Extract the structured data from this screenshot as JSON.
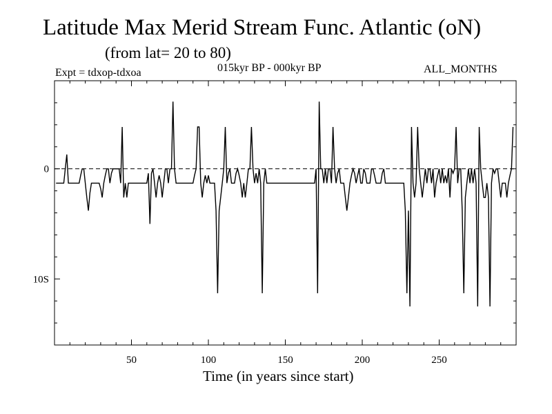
{
  "header": {
    "title": "Latitude Max Merid Stream Func. Atlantic (oN)",
    "subtitle": "(from lat= 20 to 80)",
    "experiment": "Expt = tdxop-tdxoa",
    "period": "015kyr BP - 000kyr BP",
    "months": "ALL_MONTHS"
  },
  "chart_data": {
    "type": "line",
    "title": "Latitude Max Merid Stream Func. Atlantic (oN)",
    "subtitle": "(from lat= 20 to 80)",
    "xlabel": "Time (in years since start)",
    "ylabel": "",
    "xlim": [
      0,
      300
    ],
    "ylim": [
      -16,
      8
    ],
    "x_ticks": [
      50,
      100,
      150,
      200,
      250
    ],
    "y_ticks": [
      {
        "value": 0,
        "label": "0"
      },
      {
        "value": -10,
        "label": "10S"
      }
    ],
    "reference_line": {
      "value": 0,
      "style": "dashed"
    },
    "grid": false,
    "series": [
      {
        "name": "",
        "points": [
          [
            1,
            -1.3
          ],
          [
            6,
            -1.3
          ],
          [
            7,
            0
          ],
          [
            8,
            1.3
          ],
          [
            9,
            -1.3
          ],
          [
            16,
            -1.3
          ],
          [
            17,
            -0.6
          ],
          [
            18,
            0
          ],
          [
            19,
            0
          ],
          [
            20,
            -1.3
          ],
          [
            21,
            -2.6
          ],
          [
            22,
            -3.8
          ],
          [
            23,
            -2.2
          ],
          [
            24,
            -1.3
          ],
          [
            29,
            -1.3
          ],
          [
            30,
            -1.8
          ],
          [
            31,
            -2.6
          ],
          [
            32,
            -1.3
          ],
          [
            33,
            -0.6
          ],
          [
            34,
            0
          ],
          [
            35,
            0
          ],
          [
            36,
            -1.3
          ],
          [
            37,
            -0.4
          ],
          [
            38,
            0
          ],
          [
            42,
            0
          ],
          [
            43,
            -1.3
          ],
          [
            44,
            3.8
          ],
          [
            45,
            -2.6
          ],
          [
            46,
            -1.3
          ],
          [
            47,
            -2.6
          ],
          [
            48,
            -1.3
          ],
          [
            60,
            -1.3
          ],
          [
            61,
            -0.4
          ],
          [
            62,
            -5
          ],
          [
            63,
            -0.4
          ],
          [
            64,
            0
          ],
          [
            65,
            -1.3
          ],
          [
            66,
            -2.6
          ],
          [
            67,
            -1.3
          ],
          [
            68,
            -0.6
          ],
          [
            69,
            -1.3
          ],
          [
            70,
            -2.6
          ],
          [
            71,
            -1.3
          ],
          [
            72,
            0
          ],
          [
            73,
            0
          ],
          [
            74,
            -1.3
          ],
          [
            75,
            0
          ],
          [
            76,
            0
          ],
          [
            77,
            6.1
          ],
          [
            78,
            0
          ],
          [
            79,
            -1.3
          ],
          [
            90,
            -1.3
          ],
          [
            91,
            -0.6
          ],
          [
            92,
            0
          ],
          [
            93,
            3.8
          ],
          [
            94,
            3.8
          ],
          [
            95,
            -1.3
          ],
          [
            96,
            -2.6
          ],
          [
            97,
            -1.3
          ],
          [
            98,
            -0.6
          ],
          [
            99,
            -1.3
          ],
          [
            100,
            -0.6
          ],
          [
            101,
            -1.3
          ],
          [
            102,
            -1.3
          ],
          [
            103,
            -1.3
          ],
          [
            104,
            -1.3
          ],
          [
            105,
            -3.8
          ],
          [
            106,
            -11.3
          ],
          [
            107,
            -3.8
          ],
          [
            108,
            -2.6
          ],
          [
            109,
            -1.3
          ],
          [
            110,
            0
          ],
          [
            111,
            3.8
          ],
          [
            112,
            -1.3
          ],
          [
            113,
            -0.4
          ],
          [
            114,
            0
          ],
          [
            115,
            -1.3
          ],
          [
            116,
            -1.3
          ],
          [
            117,
            -1.3
          ],
          [
            118,
            -0.4
          ],
          [
            119,
            0
          ],
          [
            120,
            -0.6
          ],
          [
            121,
            -1.3
          ],
          [
            122,
            -2.6
          ],
          [
            123,
            -1.3
          ],
          [
            124,
            -2.6
          ],
          [
            125,
            -1.3
          ],
          [
            126,
            0
          ],
          [
            127,
            0
          ],
          [
            128,
            3.8
          ],
          [
            129,
            0
          ],
          [
            130,
            -1.3
          ],
          [
            131,
            -0.4
          ],
          [
            132,
            -1.3
          ],
          [
            133,
            0
          ],
          [
            134,
            -1.3
          ],
          [
            135,
            -11.3
          ],
          [
            136,
            -1.3
          ],
          [
            137,
            0
          ],
          [
            138,
            -1.3
          ],
          [
            139,
            -1.3
          ],
          [
            169,
            -1.3
          ],
          [
            170,
            0
          ],
          [
            171,
            -11.3
          ],
          [
            172,
            6.1
          ],
          [
            173,
            0
          ],
          [
            174,
            0
          ],
          [
            175,
            -1.3
          ],
          [
            176,
            0
          ],
          [
            177,
            -1.3
          ],
          [
            178,
            0
          ],
          [
            179,
            0
          ],
          [
            180,
            -1.3
          ],
          [
            181,
            3.8
          ],
          [
            182,
            0
          ],
          [
            183,
            -1.3
          ],
          [
            184,
            -0.4
          ],
          [
            185,
            0
          ],
          [
            186,
            -1.3
          ],
          [
            187,
            -1.3
          ],
          [
            188,
            -1.3
          ],
          [
            189,
            -2.6
          ],
          [
            190,
            -3.8
          ],
          [
            191,
            -2.6
          ],
          [
            192,
            -1.3
          ],
          [
            193,
            -0.6
          ],
          [
            194,
            0
          ],
          [
            195,
            -0.4
          ],
          [
            196,
            -1.3
          ],
          [
            197,
            -0.6
          ],
          [
            198,
            0
          ],
          [
            199,
            -1.3
          ],
          [
            200,
            -1.3
          ],
          [
            201,
            0
          ],
          [
            202,
            -0.4
          ],
          [
            203,
            -1.3
          ],
          [
            204,
            -1.3
          ],
          [
            205,
            -1.3
          ],
          [
            206,
            0
          ],
          [
            207,
            0
          ],
          [
            208,
            -0.6
          ],
          [
            209,
            -1.3
          ],
          [
            210,
            -1.3
          ],
          [
            211,
            -1.3
          ],
          [
            212,
            -1.3
          ],
          [
            213,
            -0.4
          ],
          [
            214,
            0
          ],
          [
            215,
            -1.3
          ],
          [
            227,
            -1.3
          ],
          [
            228,
            -3.8
          ],
          [
            229,
            -11.3
          ],
          [
            230,
            -3.8
          ],
          [
            231,
            -12.5
          ],
          [
            232,
            3.8
          ],
          [
            233,
            -1.3
          ],
          [
            234,
            -2.6
          ],
          [
            235,
            -1.3
          ],
          [
            236,
            3.8
          ],
          [
            237,
            0
          ],
          [
            238,
            -1.3
          ],
          [
            239,
            -2.6
          ],
          [
            240,
            -1.3
          ],
          [
            241,
            0
          ],
          [
            242,
            -1.3
          ],
          [
            243,
            0
          ],
          [
            244,
            0
          ],
          [
            245,
            -1.3
          ],
          [
            246,
            0
          ],
          [
            247,
            -2.6
          ],
          [
            248,
            -1.3
          ],
          [
            249,
            -0.6
          ],
          [
            250,
            0
          ],
          [
            251,
            -1.3
          ],
          [
            252,
            0
          ],
          [
            253,
            -1.3
          ],
          [
            254,
            -0.6
          ],
          [
            255,
            -1.3
          ],
          [
            256,
            0
          ],
          [
            257,
            -2.6
          ],
          [
            258,
            0
          ],
          [
            259,
            -0.4
          ],
          [
            260,
            0
          ],
          [
            261,
            3.8
          ],
          [
            262,
            -1.3
          ],
          [
            263,
            0
          ],
          [
            264,
            0
          ],
          [
            265,
            -3.8
          ],
          [
            266,
            -11.3
          ],
          [
            267,
            -2.6
          ],
          [
            268,
            -1.3
          ],
          [
            269,
            0
          ],
          [
            270,
            -1.3
          ],
          [
            271,
            0
          ],
          [
            272,
            -1.3
          ],
          [
            273,
            0
          ],
          [
            274,
            -1.3
          ],
          [
            275,
            -12.5
          ],
          [
            276,
            3.8
          ],
          [
            277,
            0
          ],
          [
            278,
            -1.3
          ],
          [
            279,
            -2.6
          ],
          [
            280,
            -2.6
          ],
          [
            281,
            -1.3
          ],
          [
            282,
            -2.6
          ],
          [
            283,
            -12.5
          ],
          [
            284,
            -1.3
          ],
          [
            285,
            0
          ],
          [
            286,
            -0.4
          ],
          [
            287,
            0
          ],
          [
            288,
            0
          ],
          [
            289,
            -1.3
          ],
          [
            290,
            -2.6
          ],
          [
            291,
            -1.3
          ],
          [
            292,
            -1.3
          ],
          [
            293,
            -1.3
          ],
          [
            294,
            -2.6
          ],
          [
            295,
            -1.3
          ],
          [
            296,
            -0.6
          ],
          [
            297,
            0
          ],
          [
            298,
            3.8
          ]
        ],
        "color": "#000000"
      }
    ]
  }
}
